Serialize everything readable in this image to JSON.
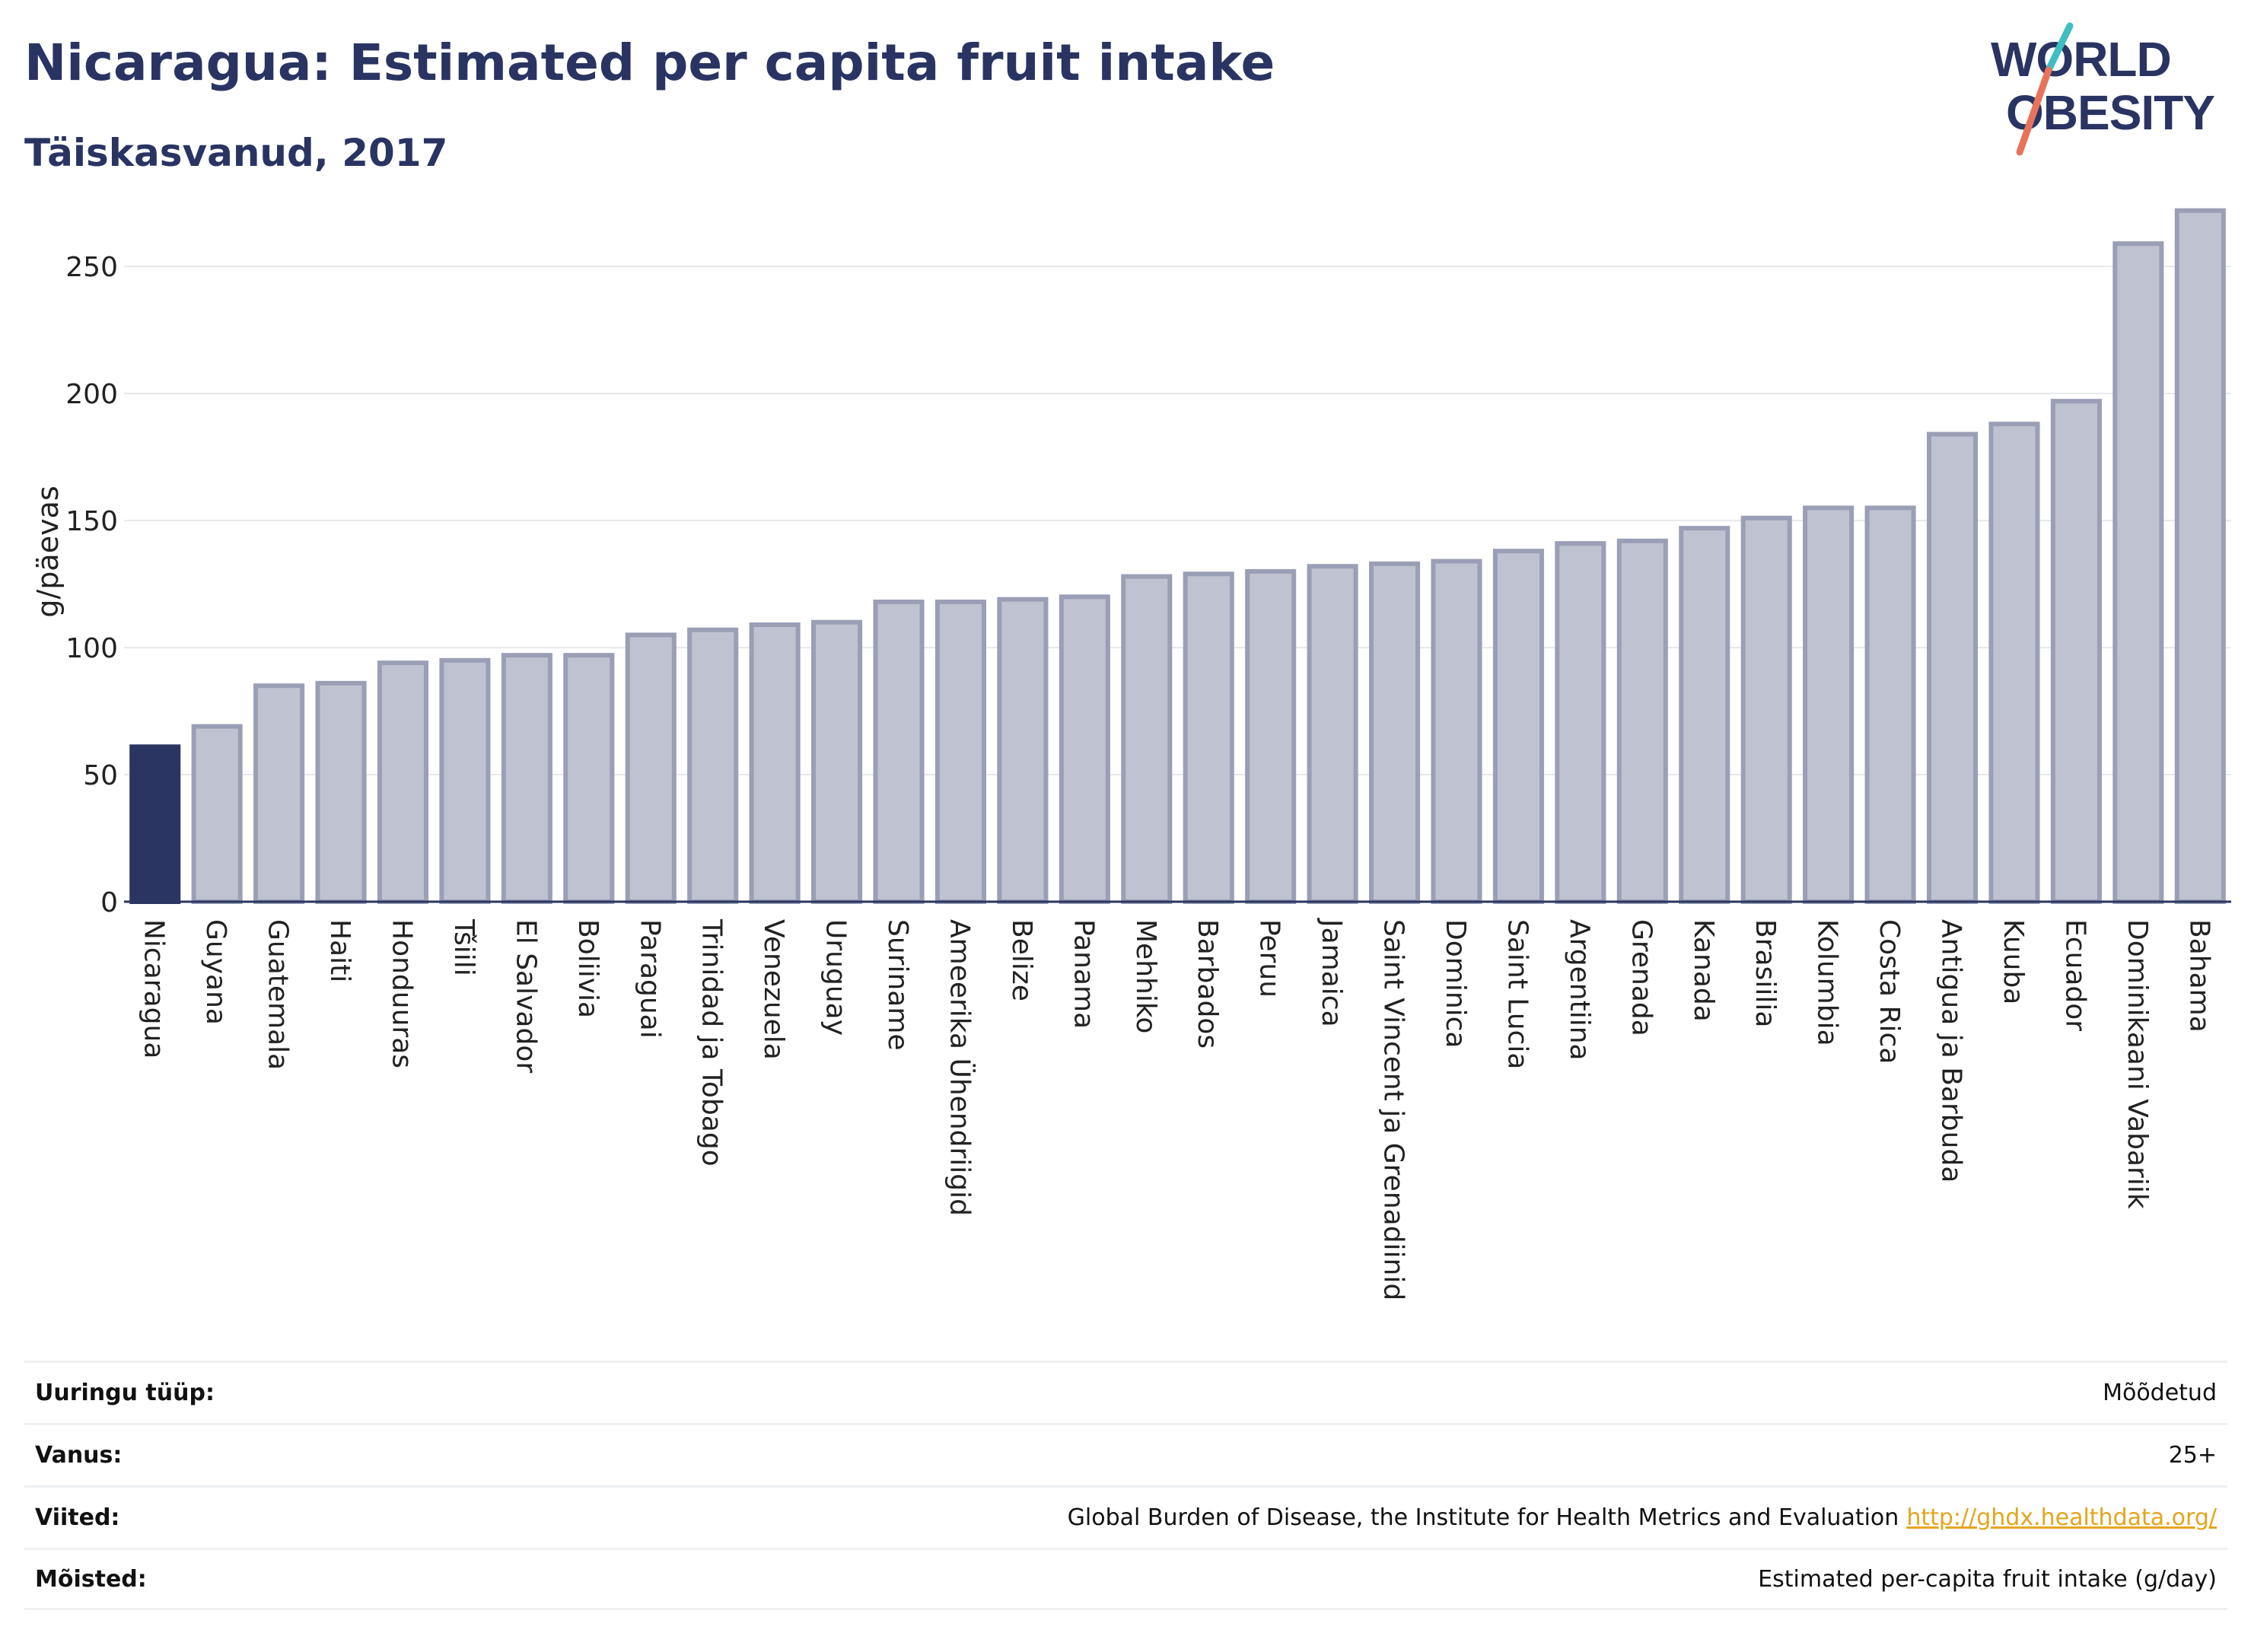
{
  "header": {
    "title": "Nicaragua: Estimated per capita fruit intake",
    "subtitle": "Täiskasvanud, 2017"
  },
  "logo": {
    "line1": "WORLD",
    "line2": "OBESITY",
    "colors": {
      "text": "#2a3462",
      "accent_teal": "#3fbfc2",
      "accent_red": "#e8735a"
    }
  },
  "colors": {
    "highlight_bar": "#2b3561",
    "bar_fill": "#bfc2d0",
    "bar_stroke": "#9a9fb5",
    "grid": "#e6e8ec",
    "axis": "#2b3561"
  },
  "chart_data": {
    "type": "bar",
    "ylabel": "g/päevas",
    "ylim": [
      0,
      280
    ],
    "yticks": [
      0,
      50,
      100,
      150,
      200,
      250
    ],
    "grid": true,
    "highlight": "Nicaragua",
    "categories": [
      "Nicaragua",
      "Guyana",
      "Guatemala",
      "Haiti",
      "Honduuras",
      "Tšiili",
      "El Salvador",
      "Boliivia",
      "Paraguai",
      "Trinidad ja Tobago",
      "Venezuela",
      "Uruguay",
      "Suriname",
      "Ameerika Ühendriigid",
      "Belize",
      "Panama",
      "Mehhiko",
      "Barbados",
      "Peruu",
      "Jamaica",
      "Saint Vincent ja Grenadiinid",
      "Dominica",
      "Saint Lucia",
      "Argentiina",
      "Grenada",
      "Kanada",
      "Brasiilia",
      "Kolumbia",
      "Costa Rica",
      "Antigua ja Barbuda",
      "Kuuba",
      "Ecuador",
      "Dominikaani Vabariik",
      "Bahama"
    ],
    "values": [
      61,
      69,
      85,
      86,
      94,
      95,
      97,
      97,
      105,
      107,
      109,
      110,
      118,
      118,
      119,
      120,
      128,
      129,
      130,
      132,
      133,
      134,
      138,
      141,
      142,
      147,
      151,
      155,
      155,
      184,
      188,
      197,
      259,
      272
    ]
  },
  "meta": [
    {
      "label": "Uuringu tüüp:",
      "value": "Mõõdetud"
    },
    {
      "label": "Vanus:",
      "value": "25+"
    },
    {
      "label": "Viited:",
      "value": "Global Burden of Disease, the Institute for Health Metrics and Evaluation",
      "link": "http://ghdx.healthdata.org/"
    },
    {
      "label": "Mõisted:",
      "value": "Estimated per-capita fruit intake (g/day)"
    }
  ]
}
